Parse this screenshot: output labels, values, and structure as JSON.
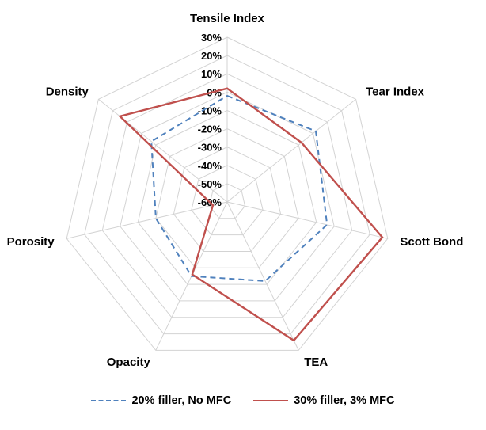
{
  "chart_data": {
    "type": "radar",
    "title": "",
    "categories": [
      "Tensile Index",
      "Tear Index",
      "Scott Bond",
      "TEA",
      "Opacity",
      "Porosity",
      "Density"
    ],
    "series": [
      {
        "name": "20% filler, No MFC",
        "color": "#4f81bd",
        "style": "dashed",
        "values": [
          -2,
          2,
          -4,
          -12,
          -15,
          -20,
          -7
        ]
      },
      {
        "name": "30% filler, 3% MFC",
        "color": "#c0504d",
        "style": "solid",
        "values": [
          2,
          -8,
          27,
          24,
          -16,
          -52,
          15
        ]
      }
    ],
    "axis": {
      "min": -60,
      "max": 30,
      "step": 10,
      "tick_format": "percent"
    },
    "tick_labels": [
      "30%",
      "20%",
      "10%",
      "0%",
      "-10%",
      "-20%",
      "-30%",
      "-40%",
      "-50%",
      "-60%"
    ],
    "grid": true,
    "grid_color": "#d3d3d3",
    "grid_shape": "polygon",
    "legend_position": "bottom"
  }
}
